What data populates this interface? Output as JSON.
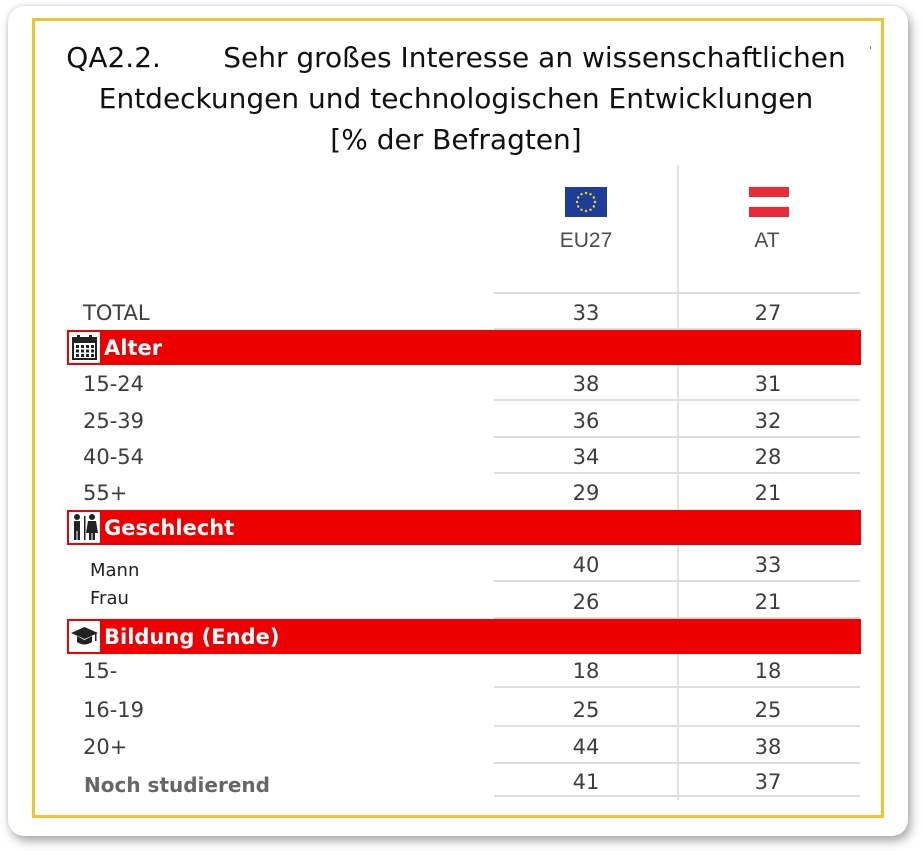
{
  "chart_data": {
    "type": "table",
    "title_line1": "QA2.2.       Sehr großes Interesse an wissenschaftlichen",
    "title_line2": "Entdeckungen und technologischen Entwicklungen",
    "title_line3": "[% der  Befragten]",
    "columns": [
      "EU27",
      "AT"
    ],
    "total": {
      "label": "TOTAL",
      "values": [
        33,
        27
      ]
    },
    "sections": [
      {
        "label": "Alter",
        "icon": "calendar-icon",
        "rows": [
          {
            "label": "15-24",
            "values": [
              38,
              31
            ]
          },
          {
            "label": "25-39",
            "values": [
              36,
              32
            ]
          },
          {
            "label": "40-54",
            "values": [
              34,
              28
            ]
          },
          {
            "label": "55+",
            "values": [
              29,
              21
            ]
          }
        ]
      },
      {
        "label": "Geschlecht",
        "icon": "man-woman-icon",
        "rows": [
          {
            "label": "Mann",
            "values": [
              40,
              33
            ]
          },
          {
            "label": "Frau",
            "values": [
              26,
              21
            ]
          }
        ]
      },
      {
        "label": "Bildung (Ende)",
        "icon": "graduation-cap-icon",
        "rows": [
          {
            "label": "15-",
            "values": [
              18,
              18
            ]
          },
          {
            "label": "16-19",
            "values": [
              25,
              25
            ]
          },
          {
            "label": "20+",
            "values": [
              44,
              38
            ]
          },
          {
            "label": "Noch studierend",
            "values": [
              41,
              37
            ]
          }
        ]
      }
    ]
  },
  "colors": {
    "section_red": "#ee0000",
    "frame_yellow": "#f1c232",
    "eu_blue": "#1d3d9a",
    "eu_star": "#ffdd00",
    "at_red": "#ed2939"
  }
}
